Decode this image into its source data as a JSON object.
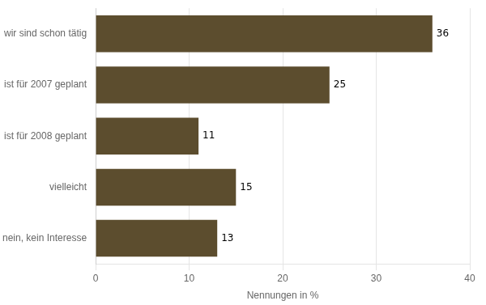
{
  "chart_data": {
    "type": "bar",
    "orientation": "horizontal",
    "categories": [
      "nein, kein Interesse",
      "vielleicht",
      "ist für 2008 geplant",
      "ist für 2007 geplant",
      "wir sind schon tätig"
    ],
    "values": [
      13,
      15,
      11,
      25,
      36
    ],
    "color": "#5c4d2e",
    "xlabel": "Nennungen in %",
    "xlim": [
      0,
      40
    ],
    "xticks": [
      0,
      10,
      20,
      30,
      40
    ],
    "grid": true,
    "data_labels": true
  }
}
